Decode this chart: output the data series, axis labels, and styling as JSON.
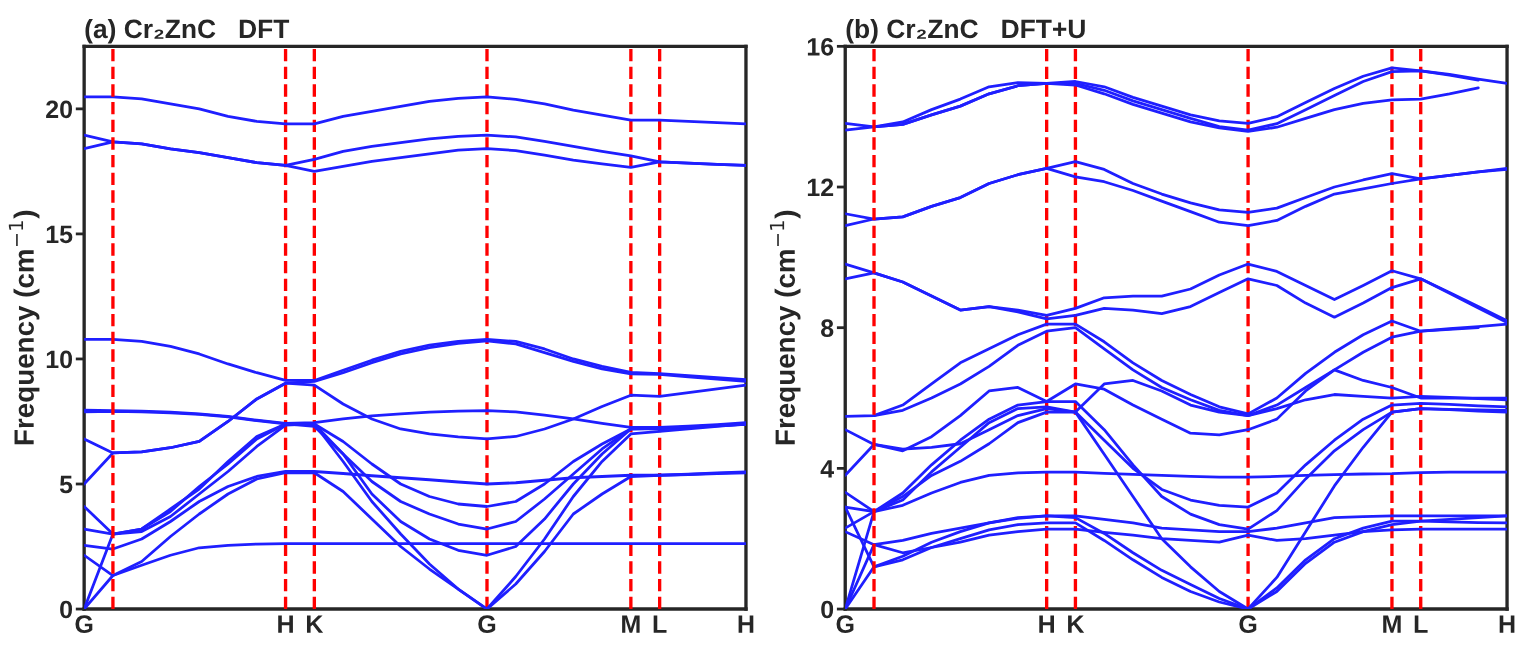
{
  "chart_data": [
    {
      "type": "line",
      "title": "(a) Cr₂ZnC   DFT",
      "ylabel": "Frequency (cm$^{−1}$)",
      "categories": [
        "G",
        null,
        null,
        null,
        null,
        null,
        null,
        "H",
        "K",
        null,
        null,
        null,
        null,
        null,
        "G",
        null,
        null,
        null,
        null,
        "M",
        "L",
        null,
        null,
        "H"
      ],
      "ylim": [
        0,
        22.5
      ],
      "yticks": [
        0,
        5,
        10,
        15,
        20
      ],
      "grid": "x",
      "marker": "none",
      "line_style": "solid",
      "series": [
        {
          "color": "#1f1fff",
          "values": [
            20.48,
            20.48,
            20.4,
            20.2,
            20.0,
            19.7,
            19.5,
            19.4,
            19.4,
            19.7,
            19.9,
            20.1,
            20.3,
            20.42,
            20.48,
            20.38,
            20.2,
            19.95,
            19.75,
            19.55,
            19.55,
            19.5,
            19.45,
            19.4
          ]
        },
        {
          "color": "#1f1fff",
          "values": [
            18.95,
            18.68,
            18.6,
            18.4,
            18.25,
            18.05,
            17.85,
            17.74,
            17.98,
            18.3,
            18.5,
            18.65,
            18.8,
            18.9,
            18.95,
            18.88,
            18.7,
            18.5,
            18.3,
            18.12,
            17.88,
            17.83,
            17.78,
            17.74
          ]
        },
        {
          "color": "#1f1fff",
          "values": [
            18.41,
            18.68,
            18.6,
            18.4,
            18.25,
            18.05,
            17.85,
            17.74,
            17.5,
            17.7,
            17.9,
            18.05,
            18.2,
            18.35,
            18.41,
            18.33,
            18.15,
            17.95,
            17.8,
            17.66,
            17.88,
            17.83,
            17.78,
            17.74
          ]
        },
        {
          "color": "#1f1fff",
          "values": [
            10.78,
            10.78,
            10.7,
            10.5,
            10.2,
            9.8,
            9.45,
            9.14,
            9.14,
            9.55,
            9.95,
            10.3,
            10.55,
            10.7,
            10.78,
            10.7,
            10.4,
            10.0,
            9.7,
            9.46,
            9.41,
            9.33,
            9.25,
            9.17
          ]
        },
        {
          "color": "#1f1fff",
          "values": [
            5.0,
            6.24,
            6.28,
            6.45,
            6.7,
            7.5,
            8.4,
            9.03,
            9.1,
            9.45,
            9.85,
            10.2,
            10.45,
            10.62,
            10.72,
            10.6,
            10.25,
            9.9,
            9.6,
            9.4,
            9.38,
            9.28,
            9.19,
            9.1
          ]
        },
        {
          "color": "#1f1fff",
          "values": [
            6.8,
            6.24,
            6.28,
            6.45,
            6.7,
            7.5,
            8.4,
            9.03,
            8.95,
            8.2,
            7.6,
            7.2,
            7.0,
            6.88,
            6.8,
            6.9,
            7.2,
            7.6,
            8.1,
            8.55,
            8.5,
            8.65,
            8.8,
            8.95
          ]
        },
        {
          "color": "#1f1fff",
          "values": [
            7.95,
            7.93,
            7.91,
            7.87,
            7.8,
            7.7,
            7.55,
            7.42,
            7.45,
            7.6,
            7.72,
            7.8,
            7.87,
            7.91,
            7.93,
            7.88,
            7.75,
            7.6,
            7.42,
            7.26,
            7.26,
            7.31,
            7.37,
            7.45
          ]
        },
        {
          "color": "#1f1fff",
          "values": [
            7.88,
            7.9,
            7.88,
            7.84,
            7.78,
            7.68,
            7.53,
            7.4,
            7.4,
            6.2,
            4.6,
            3.5,
            2.8,
            2.35,
            2.15,
            2.5,
            3.6,
            5.0,
            6.2,
            7.2,
            7.22,
            7.28,
            7.33,
            7.38
          ]
        },
        {
          "color": "#1f1fff",
          "values": [
            4.1,
            3.0,
            3.1,
            3.7,
            4.6,
            5.5,
            6.5,
            7.35,
            7.4,
            6.7,
            5.8,
            5.0,
            4.5,
            4.2,
            4.1,
            4.3,
            5.0,
            5.9,
            6.6,
            7.2,
            7.2,
            7.26,
            7.32,
            7.38
          ]
        },
        {
          "color": "#1f1fff",
          "values": [
            3.2,
            3.0,
            3.2,
            3.9,
            4.9,
            5.8,
            6.8,
            7.4,
            7.3,
            6.2,
            5.1,
            4.3,
            3.8,
            3.4,
            3.2,
            3.5,
            4.4,
            5.4,
            6.4,
            7.2,
            7.22,
            7.28,
            7.34,
            7.4
          ]
        },
        {
          "color": "#1f1fff",
          "values": [
            2.55,
            2.4,
            2.8,
            3.5,
            4.3,
            4.9,
            5.3,
            5.5,
            5.5,
            5.42,
            5.33,
            5.25,
            5.17,
            5.08,
            5.0,
            5.05,
            5.15,
            5.25,
            5.3,
            5.35,
            5.35,
            5.39,
            5.44,
            5.48
          ]
        },
        {
          "color": "#1f1fff",
          "values": [
            2.15,
            1.34,
            1.75,
            2.15,
            2.45,
            2.55,
            2.6,
            2.62,
            2.62,
            2.62,
            2.62,
            2.62,
            2.62,
            2.62,
            2.62,
            2.62,
            2.62,
            2.62,
            2.62,
            2.62,
            2.62,
            2.62,
            2.62,
            2.62
          ]
        },
        {
          "color": "#1f1fff",
          "values": [
            0,
            3.0,
            3.2,
            4.0,
            4.8,
            5.9,
            6.9,
            7.4,
            7.4,
            5.9,
            4.3,
            3.0,
            1.8,
            0.8,
            0,
            1.3,
            2.8,
            4.5,
            5.9,
            7.0,
            7.1,
            7.2,
            7.3,
            7.4
          ]
        },
        {
          "color": "#1f1fff",
          "values": [
            0,
            1.34,
            1.9,
            2.9,
            3.8,
            4.6,
            5.2,
            5.45,
            5.45,
            4.7,
            3.6,
            2.5,
            1.6,
            0.8,
            0,
            1.0,
            2.3,
            3.8,
            4.6,
            5.3,
            5.35,
            5.38,
            5.42,
            5.45
          ]
        }
      ]
    },
    {
      "type": "line",
      "title": "(b) Cr₂ZnC   DFT+U",
      "ylabel": "Frequency (cm$^{−1}$)",
      "categories": [
        "G",
        null,
        null,
        null,
        null,
        null,
        null,
        "H",
        "K",
        null,
        null,
        null,
        null,
        null,
        "G",
        null,
        null,
        null,
        null,
        "M",
        "L",
        null,
        null,
        "H"
      ],
      "ylim": [
        0,
        16
      ],
      "yticks": [
        0,
        4,
        8,
        12,
        16
      ],
      "grid": "x",
      "marker": "none",
      "line_style": "solid",
      "series": [
        {
          "color": "#1f1fff",
          "values": [
            13.81,
            13.71,
            13.85,
            14.2,
            14.5,
            14.85,
            14.97,
            14.95,
            15.0,
            14.85,
            14.55,
            14.3,
            14.05,
            13.88,
            13.81,
            14.0,
            14.4,
            14.8,
            15.15,
            15.39,
            15.3,
            15.2,
            15.07,
            14.95
          ]
        },
        {
          "color": "#1f1fff",
          "values": [
            13.62,
            13.71,
            13.78,
            14.05,
            14.3,
            14.65,
            14.88,
            14.95,
            14.95,
            14.75,
            14.45,
            14.2,
            13.95,
            13.72,
            13.62,
            13.8,
            14.2,
            14.6,
            15.0,
            15.28,
            15.3,
            15.18,
            15.04,
            null
          ]
        },
        {
          "color": "#1f1fff",
          "values": [
            null,
            13.71,
            13.78,
            14.05,
            14.3,
            14.65,
            14.88,
            14.95,
            14.9,
            14.65,
            14.35,
            14.1,
            13.85,
            13.68,
            13.58,
            13.7,
            13.95,
            14.2,
            14.38,
            14.48,
            14.5,
            14.65,
            14.82,
            null
          ]
        },
        {
          "color": "#1f1fff",
          "values": [
            11.24,
            11.09,
            11.15,
            11.45,
            11.7,
            12.1,
            12.35,
            12.53,
            12.72,
            12.5,
            12.1,
            11.8,
            11.55,
            11.35,
            11.28,
            11.4,
            11.7,
            12.0,
            12.2,
            12.38,
            12.23,
            12.33,
            12.43,
            12.53
          ]
        },
        {
          "color": "#1f1fff",
          "values": [
            10.9,
            11.09,
            11.15,
            11.45,
            11.7,
            12.1,
            12.35,
            12.53,
            12.29,
            12.15,
            11.9,
            11.6,
            11.3,
            11.0,
            10.9,
            11.05,
            11.45,
            11.8,
            11.95,
            12.1,
            12.23,
            12.33,
            12.43,
            12.5
          ]
        },
        {
          "color": "#1f1fff",
          "values": [
            9.81,
            9.56,
            9.3,
            8.9,
            8.5,
            8.6,
            8.5,
            8.35,
            8.55,
            8.85,
            8.9,
            8.9,
            9.1,
            9.5,
            9.81,
            9.6,
            9.2,
            8.8,
            9.2,
            9.62,
            9.39,
            9.0,
            8.6,
            8.2
          ]
        },
        {
          "color": "#1f1fff",
          "values": [
            9.39,
            9.56,
            9.3,
            8.9,
            8.5,
            8.6,
            8.45,
            8.25,
            8.35,
            8.55,
            8.5,
            8.4,
            8.6,
            9.0,
            9.39,
            9.2,
            8.7,
            8.3,
            8.7,
            9.14,
            9.39,
            8.98,
            8.56,
            8.15
          ]
        },
        {
          "color": "#1f1fff",
          "values": [
            5.48,
            5.5,
            5.8,
            6.4,
            7.0,
            7.4,
            7.8,
            8.1,
            8.1,
            7.6,
            7.0,
            6.5,
            6.1,
            5.75,
            5.55,
            6.0,
            6.7,
            7.3,
            7.8,
            8.19,
            7.9,
            7.97,
            8.03,
            8.1
          ]
        },
        {
          "color": "#1f1fff",
          "values": [
            null,
            5.5,
            5.65,
            6.0,
            6.4,
            6.9,
            7.5,
            7.9,
            8.0,
            7.4,
            6.8,
            6.3,
            5.95,
            5.65,
            5.5,
            5.8,
            6.3,
            6.8,
            7.3,
            7.73,
            7.9,
            7.95,
            8.0,
            null
          ]
        },
        {
          "color": "#1f1fff",
          "values": [
            5.1,
            4.68,
            4.5,
            4.9,
            5.5,
            6.2,
            6.3,
            5.9,
            6.4,
            6.25,
            5.8,
            5.4,
            5.0,
            4.95,
            5.1,
            5.4,
            6.2,
            6.8,
            6.5,
            6.3,
            6.0,
            6.0,
            6.0,
            6.0
          ]
        },
        {
          "color": "#1f1fff",
          "values": [
            3.8,
            4.68,
            4.55,
            4.6,
            4.7,
            5.1,
            5.5,
            5.7,
            5.6,
            6.4,
            6.5,
            6.2,
            5.8,
            5.6,
            5.5,
            5.7,
            5.95,
            6.1,
            6.05,
            6.0,
            6.05,
            6.02,
            5.98,
            5.95
          ]
        },
        {
          "color": "#1f1fff",
          "values": [
            3.32,
            2.77,
            2.95,
            3.3,
            3.6,
            3.8,
            3.87,
            3.89,
            3.89,
            3.86,
            3.83,
            3.8,
            3.77,
            3.75,
            3.75,
            3.77,
            3.8,
            3.82,
            3.84,
            3.85,
            3.88,
            3.89,
            3.89,
            3.89
          ]
        },
        {
          "color": "#1f1fff",
          "values": [
            2.9,
            2.77,
            3.1,
            3.9,
            4.6,
            5.3,
            5.7,
            5.75,
            5.6,
            4.8,
            4.0,
            3.4,
            3.1,
            2.95,
            2.9,
            3.3,
            4.1,
            4.8,
            5.4,
            5.8,
            5.85,
            5.82,
            5.78,
            5.75
          ]
        },
        {
          "color": "#1f1fff",
          "values": [
            2.3,
            2.77,
            3.3,
            4.1,
            4.8,
            5.4,
            5.8,
            5.9,
            5.9,
            5.1,
            4.1,
            3.2,
            2.7,
            2.4,
            2.27,
            2.8,
            3.7,
            4.5,
            5.1,
            5.6,
            5.7,
            5.68,
            5.66,
            5.65
          ]
        },
        {
          "color": "#1f1fff",
          "values": [
            2.9,
            1.2,
            1.5,
            1.9,
            2.2,
            2.45,
            2.6,
            2.65,
            2.65,
            2.55,
            2.45,
            2.3,
            2.25,
            2.2,
            2.2,
            2.3,
            2.45,
            2.6,
            2.63,
            2.65,
            2.65,
            2.65,
            2.65,
            2.65
          ]
        },
        {
          "color": "#1f1fff",
          "values": [
            2.2,
            1.83,
            1.6,
            1.75,
            1.9,
            2.1,
            2.2,
            2.27,
            2.27,
            2.18,
            2.1,
            2.0,
            1.95,
            1.9,
            2.1,
            1.95,
            2.0,
            2.1,
            2.2,
            2.25,
            2.27,
            2.27,
            2.27,
            2.27
          ]
        },
        {
          "color": "#1f1fff",
          "values": [
            0,
            1.2,
            1.4,
            1.75,
            2.0,
            2.25,
            2.4,
            2.45,
            2.45,
            1.95,
            1.4,
            0.9,
            0.5,
            0.2,
            0,
            0.6,
            1.4,
            2.0,
            2.3,
            2.5,
            2.5,
            2.48,
            2.46,
            2.45
          ]
        },
        {
          "color": "#1f1fff",
          "values": [
            0,
            1.83,
            1.95,
            2.15,
            2.3,
            2.45,
            2.58,
            2.65,
            2.6,
            2.15,
            1.6,
            1.1,
            0.7,
            0.3,
            0,
            0.5,
            1.3,
            1.9,
            2.2,
            2.4,
            2.5,
            2.55,
            2.6,
            2.65
          ]
        },
        {
          "color": "#1f1fff",
          "values": [
            0,
            2.77,
            3.2,
            3.8,
            4.2,
            4.7,
            5.3,
            5.6,
            5.6,
            4.4,
            3.2,
            2.0,
            1.2,
            0.5,
            0,
            0.9,
            2.2,
            3.5,
            4.6,
            5.6,
            5.7,
            5.67,
            5.63,
            5.6
          ]
        }
      ]
    }
  ]
}
